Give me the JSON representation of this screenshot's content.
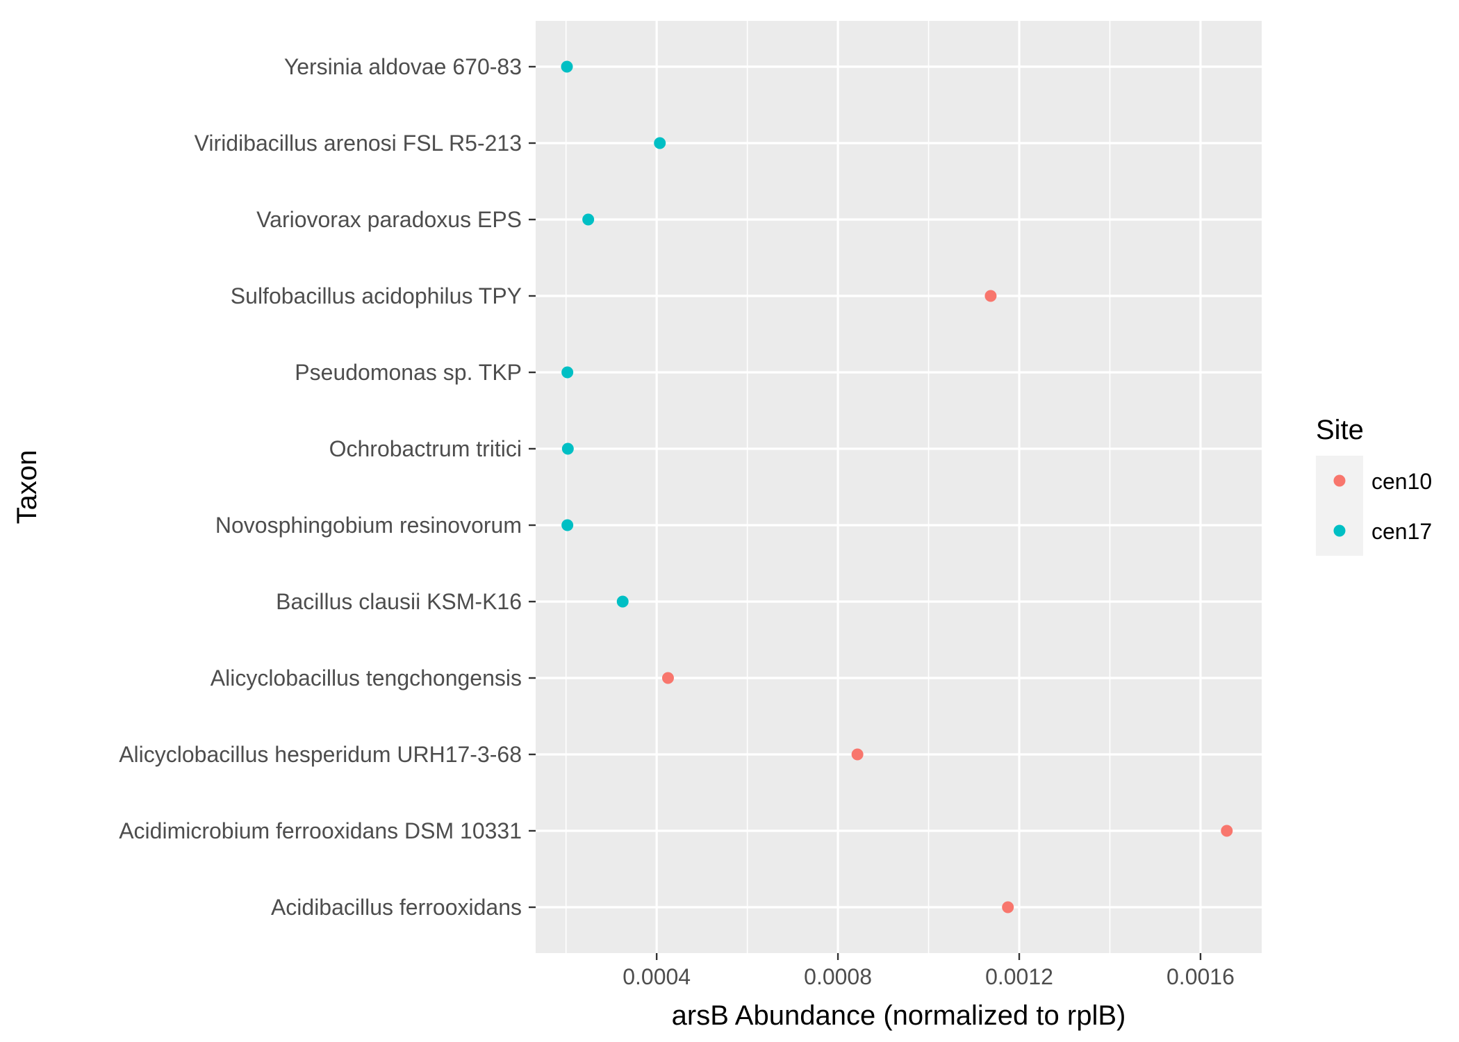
{
  "chart_data": {
    "type": "scatter",
    "title": "",
    "xlabel": "arsB Abundance (normalized to rplB)",
    "ylabel": "Taxon",
    "xlim": [
      0.000133,
      0.001735
    ],
    "xticks": [
      0.0004,
      0.0008,
      0.0012,
      0.0016
    ],
    "xtick_labels": [
      "0.0004",
      "0.0008",
      "0.0012",
      "0.0016"
    ],
    "grid": true,
    "legend": {
      "title": "Site",
      "placement": "right",
      "entries": [
        "cen10",
        "cen17"
      ]
    },
    "categories": [
      "Acidibacillus ferrooxidans",
      "Acidimicrobium ferrooxidans DSM 10331",
      "Alicyclobacillus hesperidum URH17-3-68",
      "Alicyclobacillus tengchongensis",
      "Bacillus clausii KSM-K16",
      "Novosphingobium resinovorum",
      "Ochrobactrum tritici",
      "Pseudomonas sp. TKP",
      "Sulfobacillus acidophilus TPY",
      "Variovorax paradoxus EPS",
      "Viridibacillus arenosi FSL R5-213",
      "Yersinia aldovae 670-83"
    ],
    "series": [
      {
        "name": "cen10",
        "color": "#F8766D",
        "points": [
          {
            "taxon": "Acidibacillus ferrooxidans",
            "x": 0.001175
          },
          {
            "taxon": "Acidimicrobium ferrooxidans DSM 10331",
            "x": 0.001658
          },
          {
            "taxon": "Alicyclobacillus hesperidum URH17-3-68",
            "x": 0.000843
          },
          {
            "taxon": "Alicyclobacillus tengchongensis",
            "x": 0.000425
          },
          {
            "taxon": "Sulfobacillus acidophilus TPY",
            "x": 0.001137
          }
        ]
      },
      {
        "name": "cen17",
        "color": "#00BFC4",
        "points": [
          {
            "taxon": "Bacillus clausii KSM-K16",
            "x": 0.000325
          },
          {
            "taxon": "Novosphingobium resinovorum",
            "x": 0.000203
          },
          {
            "taxon": "Ochrobactrum tritici",
            "x": 0.000204
          },
          {
            "taxon": "Pseudomonas sp. TKP",
            "x": 0.000203
          },
          {
            "taxon": "Variovorax paradoxus EPS",
            "x": 0.000249
          },
          {
            "taxon": "Viridibacillus arenosi FSL R5-213",
            "x": 0.000407
          },
          {
            "taxon": "Yersinia aldovae 670-83",
            "x": 0.000202
          }
        ]
      }
    ]
  }
}
